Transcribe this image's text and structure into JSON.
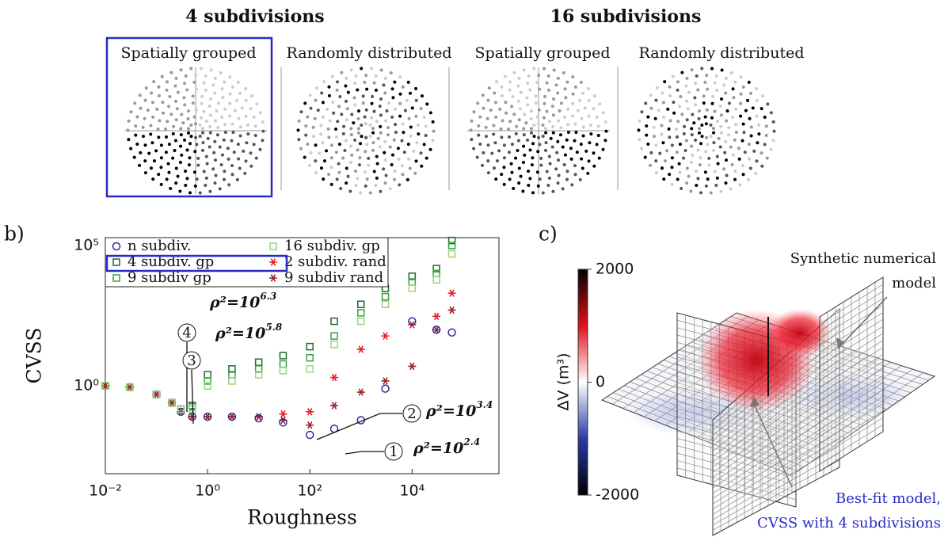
{
  "panel_a": {
    "groups": [
      {
        "title": "4 subdivisions",
        "views": [
          "Spatially grouped",
          "Randomly distributed"
        ]
      },
      {
        "title": "16 subdivisions",
        "views": [
          "Spatially grouped",
          "Randomly distributed"
        ]
      }
    ]
  },
  "chart_data": {
    "type": "scatter",
    "panel_label": "b)",
    "x_label": "Roughness",
    "y_label": "CVSS",
    "xscale": "log",
    "yscale": "log",
    "xlim": [
      0.01,
      500000
    ],
    "ylim": [
      0.00075,
      190000
    ],
    "xticks": [
      {
        "value": 0.01,
        "label": "10⁻²"
      },
      {
        "value": 1,
        "label": "10⁰"
      },
      {
        "value": 100,
        "label": "10²"
      },
      {
        "value": 10000,
        "label": "10⁴"
      }
    ],
    "yticks": [
      {
        "value": 1,
        "label": "10⁰"
      },
      {
        "value": 100000,
        "label": "10⁵"
      }
    ],
    "legend": "upper left",
    "series": [
      {
        "name": "n subdiv.",
        "color": "#2b2b9a",
        "marker": "circle",
        "x": [
          0.01,
          0.03,
          0.1,
          0.2,
          0.3,
          0.5,
          1,
          3,
          10,
          30,
          100,
          300,
          1000,
          3000,
          10000,
          30000,
          60000
        ],
        "y": [
          1,
          0.9,
          0.5,
          0.25,
          0.12,
          0.08,
          0.08,
          0.08,
          0.07,
          0.05,
          0.018,
          0.03,
          0.06,
          0.8,
          200,
          100,
          80
        ]
      },
      {
        "name": "4 subdiv. gp",
        "color": "#1d6a2e",
        "marker": "square",
        "x": [
          0.01,
          0.03,
          0.1,
          0.2,
          0.3,
          0.5,
          1,
          3,
          10,
          30,
          100,
          300,
          1000,
          3000,
          10000,
          30000,
          60000
        ],
        "y": [
          1,
          0.9,
          0.5,
          0.25,
          0.15,
          0.2,
          2.5,
          4,
          7,
          12,
          25,
          200,
          800,
          3000,
          8000,
          15000,
          150000
        ]
      },
      {
        "name": "9 subdiv gp",
        "color": "#3aa040",
        "marker": "square",
        "x": [
          0.01,
          0.03,
          0.1,
          0.2,
          0.3,
          0.5,
          1,
          3,
          10,
          30,
          100,
          300,
          1000,
          3000,
          10000,
          30000,
          60000
        ],
        "y": [
          1,
          0.9,
          0.5,
          0.25,
          0.15,
          0.18,
          1.5,
          2.5,
          4,
          6,
          10,
          60,
          400,
          1500,
          5000,
          10000,
          100000
        ]
      },
      {
        "name": "16 subdiv. gp",
        "color": "#98d47a",
        "marker": "square",
        "x": [
          0.01,
          0.03,
          0.1,
          0.2,
          0.3,
          0.5,
          1,
          3,
          10,
          30,
          100,
          300,
          1000,
          3000,
          10000,
          30000,
          60000
        ],
        "y": [
          1,
          0.9,
          0.5,
          0.25,
          0.15,
          0.15,
          1,
          1.5,
          2.5,
          3.5,
          4,
          30,
          200,
          800,
          3000,
          6000,
          50000
        ]
      },
      {
        "name": "2 subdiv. rand",
        "color": "#e41e26",
        "marker": "star",
        "x": [
          0.01,
          0.03,
          0.1,
          0.2,
          0.3,
          0.5,
          1,
          3,
          10,
          30,
          100,
          300,
          1000,
          3000,
          10000,
          30000,
          60000
        ],
        "y": [
          1,
          0.9,
          0.5,
          0.25,
          0.12,
          0.08,
          0.08,
          0.08,
          0.08,
          0.1,
          0.12,
          2,
          20,
          60,
          150,
          300,
          2000
        ]
      },
      {
        "name": "9 subdiv rand",
        "color": "#9e1f2a",
        "marker": "star",
        "x": [
          0.01,
          0.03,
          0.1,
          0.2,
          0.3,
          0.5,
          1,
          3,
          10,
          30,
          100,
          300,
          1000,
          3000,
          10000,
          30000,
          60000
        ],
        "y": [
          1,
          0.9,
          0.5,
          0.25,
          0.12,
          0.08,
          0.08,
          0.08,
          0.08,
          0.06,
          0.04,
          0.2,
          0.6,
          1.5,
          5,
          100,
          500
        ]
      }
    ],
    "annotations": [
      {
        "marker": "4",
        "text": "ρ²=10",
        "exp": "6.3"
      },
      {
        "marker": "3",
        "text": "ρ²=10",
        "exp": "5.8"
      },
      {
        "marker": "2",
        "text": "ρ²=10",
        "exp": "3.4"
      },
      {
        "marker": "1",
        "text": "ρ²=10",
        "exp": "2.4"
      }
    ]
  },
  "panel_c": {
    "label": "c)",
    "colorbar": {
      "title": "ΔV (m³)",
      "ticks": [
        2000,
        0,
        -2000
      ]
    },
    "annotations": [
      {
        "lines": [
          "Synthetic numerical",
          "model"
        ]
      },
      {
        "lines": [
          "Best-fit model,",
          "CVSS with 4 subdivisions"
        ]
      }
    ]
  }
}
